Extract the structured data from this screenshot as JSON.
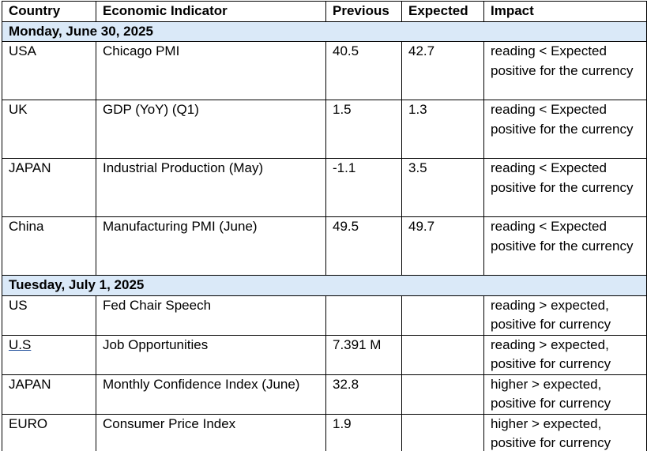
{
  "headers": {
    "country": "Country",
    "indicator": "Economic Indicator",
    "previous": "Previous",
    "expected": "Expected",
    "impact": "Impact"
  },
  "sections": [
    {
      "date": "Monday, June 30, 2025",
      "rows": [
        {
          "country": "USA",
          "indicator": "Chicago PMI",
          "previous": "40.5",
          "expected": "42.7",
          "impact": "reading < Expected positive for the currency"
        },
        {
          "country": "UK",
          "indicator": "GDP (YoY) (Q1)",
          "previous": "1.5",
          "expected": "1.3",
          "impact": "reading < Expected positive for the currency"
        },
        {
          "country": "JAPAN",
          "indicator": "Industrial Production (May)",
          "previous": "-1.1",
          "expected": "3.5",
          "impact": "reading < Expected positive for the currency"
        },
        {
          "country": "China",
          "indicator": "Manufacturing PMI (June)",
          "previous": "49.5",
          "expected": "49.7",
          "impact": "reading < Expected positive for the currency"
        }
      ]
    },
    {
      "date": "Tuesday, July 1, 2025",
      "rows": [
        {
          "country": "US",
          "indicator": "Fed Chair Speech",
          "previous": "",
          "expected": "",
          "impact": "reading > expected, positive for currency"
        },
        {
          "country": "U.S",
          "indicator": "Job Opportunities",
          "previous": "7.391 M",
          "expected": "",
          "impact": "reading > expected, positive for currency"
        },
        {
          "country": "JAPAN",
          "indicator": "Monthly Confidence Index (June)",
          "previous": "32.8",
          "expected": "",
          "impact": "higher > expected, positive for currency"
        },
        {
          "country": "EURO",
          "indicator": "Consumer Price Index",
          "previous": "1.9",
          "expected": "",
          "impact": "higher > expected, positive for currency"
        }
      ]
    }
  ]
}
